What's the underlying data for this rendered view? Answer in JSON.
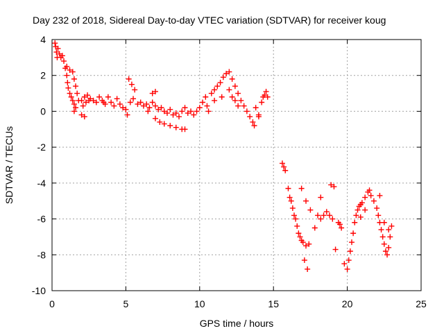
{
  "chart_data": {
    "type": "scatter",
    "title": "Day 232 of 2018, Sidereal Day-to-day VTEC variation (SDTVAR) for receiver koug",
    "xlabel": "GPS time / hours",
    "ylabel": "SDTVAR / TECUs",
    "xlim": [
      0,
      25
    ],
    "ylim": [
      -10,
      4
    ],
    "xticks": [
      0,
      5,
      10,
      15,
      20,
      25
    ],
    "yticks": [
      -10,
      -8,
      -6,
      -4,
      -2,
      0,
      2,
      4
    ],
    "grid": true,
    "marker": "+",
    "series": [
      {
        "name": "SDTVAR",
        "color": "#ff0000",
        "points": [
          [
            0.2,
            3.8
          ],
          [
            0.25,
            3.6
          ],
          [
            0.3,
            3.3
          ],
          [
            0.35,
            3.0
          ],
          [
            0.4,
            3.5
          ],
          [
            0.5,
            3.2
          ],
          [
            0.6,
            3.0
          ],
          [
            0.7,
            3.1
          ],
          [
            0.8,
            2.8
          ],
          [
            0.9,
            2.4
          ],
          [
            1.0,
            2.0
          ],
          [
            1.05,
            1.6
          ],
          [
            1.1,
            1.3
          ],
          [
            1.2,
            1.0
          ],
          [
            1.3,
            0.8
          ],
          [
            1.4,
            0.6
          ],
          [
            1.5,
            0.4
          ],
          [
            1.0,
            2.5
          ],
          [
            1.2,
            2.3
          ],
          [
            1.4,
            2.2
          ],
          [
            1.5,
            1.8
          ],
          [
            1.6,
            1.4
          ],
          [
            1.7,
            1.0
          ],
          [
            1.8,
            0.6
          ],
          [
            1.6,
            0.2
          ],
          [
            1.5,
            0.0
          ],
          [
            2.0,
            0.6
          ],
          [
            2.1,
            0.3
          ],
          [
            2.2,
            0.8
          ],
          [
            2.3,
            0.5
          ],
          [
            2.4,
            0.9
          ],
          [
            2.5,
            0.6
          ],
          [
            2.2,
            -0.3
          ],
          [
            2.0,
            -0.2
          ],
          [
            2.6,
            0.7
          ],
          [
            2.8,
            0.6
          ],
          [
            3.0,
            0.5
          ],
          [
            3.2,
            0.8
          ],
          [
            3.4,
            0.6
          ],
          [
            3.5,
            0.5
          ],
          [
            3.6,
            0.4
          ],
          [
            3.8,
            0.8
          ],
          [
            4.0,
            0.5
          ],
          [
            4.2,
            0.3
          ],
          [
            4.4,
            0.7
          ],
          [
            4.6,
            0.4
          ],
          [
            4.8,
            0.2
          ],
          [
            5.0,
            0.1
          ],
          [
            5.1,
            -0.2
          ],
          [
            5.3,
            0.5
          ],
          [
            5.5,
            0.7
          ],
          [
            5.6,
            1.2
          ],
          [
            5.4,
            1.5
          ],
          [
            5.2,
            1.8
          ],
          [
            5.8,
            0.4
          ],
          [
            6.0,
            0.5
          ],
          [
            6.2,
            0.3
          ],
          [
            6.4,
            0.4
          ],
          [
            6.6,
            0.2
          ],
          [
            6.8,
            0.5
          ],
          [
            7.0,
            0.3
          ],
          [
            7.2,
            0.1
          ],
          [
            7.4,
            0.2
          ],
          [
            7.6,
            0.0
          ],
          [
            7.8,
            -0.1
          ],
          [
            8.0,
            0.1
          ],
          [
            8.2,
            -0.2
          ],
          [
            8.4,
            -0.1
          ],
          [
            8.6,
            -0.3
          ],
          [
            8.8,
            0.0
          ],
          [
            9.0,
            0.2
          ],
          [
            9.2,
            -0.1
          ],
          [
            9.4,
            0.0
          ],
          [
            9.6,
            -0.2
          ],
          [
            9.8,
            0.0
          ],
          [
            10.0,
            0.2
          ],
          [
            10.2,
            0.5
          ],
          [
            10.4,
            0.8
          ],
          [
            10.5,
            0.3
          ],
          [
            10.6,
            0.0
          ],
          [
            7.0,
            -0.4
          ],
          [
            7.3,
            -0.6
          ],
          [
            7.6,
            -0.7
          ],
          [
            8.0,
            -0.8
          ],
          [
            8.4,
            -0.9
          ],
          [
            8.8,
            -1.0
          ],
          [
            9.0,
            -1.0
          ],
          [
            6.8,
            1.0
          ],
          [
            7.0,
            1.1
          ],
          [
            6.5,
            0.0
          ],
          [
            10.8,
            1.0
          ],
          [
            11.0,
            1.2
          ],
          [
            11.2,
            1.4
          ],
          [
            11.4,
            1.6
          ],
          [
            11.6,
            1.9
          ],
          [
            11.8,
            2.1
          ],
          [
            12.0,
            2.2
          ],
          [
            12.2,
            1.8
          ],
          [
            12.4,
            1.4
          ],
          [
            12.6,
            1.0
          ],
          [
            12.8,
            0.6
          ],
          [
            13.0,
            0.3
          ],
          [
            13.2,
            0.0
          ],
          [
            13.4,
            -0.3
          ],
          [
            13.6,
            -0.6
          ],
          [
            13.7,
            -0.8
          ],
          [
            12.0,
            1.2
          ],
          [
            12.2,
            0.8
          ],
          [
            12.4,
            0.6
          ],
          [
            12.6,
            0.3
          ],
          [
            11.5,
            0.8
          ],
          [
            11.0,
            0.6
          ],
          [
            13.8,
            0.2
          ],
          [
            14.0,
            -0.2
          ],
          [
            14.2,
            0.5
          ],
          [
            14.3,
            0.8
          ],
          [
            14.4,
            0.9
          ],
          [
            14.5,
            1.1
          ],
          [
            14.6,
            0.8
          ],
          [
            14.0,
            -0.3
          ],
          [
            15.6,
            -2.9
          ],
          [
            15.7,
            -3.1
          ],
          [
            15.8,
            -3.3
          ],
          [
            16.0,
            -4.3
          ],
          [
            16.1,
            -4.8
          ],
          [
            16.2,
            -5.0
          ],
          [
            16.3,
            -5.4
          ],
          [
            16.4,
            -5.8
          ],
          [
            16.5,
            -6.0
          ],
          [
            16.6,
            -6.4
          ],
          [
            16.7,
            -6.8
          ],
          [
            16.8,
            -7.0
          ],
          [
            16.9,
            -7.2
          ],
          [
            17.0,
            -7.3
          ],
          [
            17.2,
            -7.5
          ],
          [
            17.4,
            -7.4
          ],
          [
            16.9,
            -4.3
          ],
          [
            17.2,
            -5.0
          ],
          [
            17.1,
            -8.3
          ],
          [
            17.3,
            -8.8
          ],
          [
            17.5,
            -5.5
          ],
          [
            17.8,
            -6.5
          ],
          [
            18.0,
            -5.8
          ],
          [
            18.2,
            -6.0
          ],
          [
            18.4,
            -5.8
          ],
          [
            18.2,
            -4.8
          ],
          [
            18.6,
            -5.6
          ],
          [
            18.8,
            -5.8
          ],
          [
            18.9,
            -4.1
          ],
          [
            19.1,
            -4.2
          ],
          [
            19.0,
            -6.0
          ],
          [
            19.2,
            -7.7
          ],
          [
            19.4,
            -6.2
          ],
          [
            19.6,
            -6.5
          ],
          [
            19.8,
            -8.5
          ],
          [
            20.0,
            -8.8
          ],
          [
            20.1,
            -8.3
          ],
          [
            20.2,
            -7.8
          ],
          [
            20.3,
            -7.3
          ],
          [
            20.4,
            -6.8
          ],
          [
            20.5,
            -6.2
          ],
          [
            20.6,
            -5.8
          ],
          [
            20.7,
            -5.5
          ],
          [
            20.8,
            -5.3
          ],
          [
            20.9,
            -5.2
          ],
          [
            21.0,
            -5.1
          ],
          [
            21.2,
            -4.8
          ],
          [
            21.4,
            -4.5
          ],
          [
            21.5,
            -4.4
          ],
          [
            21.6,
            -4.7
          ],
          [
            21.8,
            -5.0
          ],
          [
            22.0,
            -5.4
          ],
          [
            22.1,
            -5.8
          ],
          [
            22.2,
            -6.2
          ],
          [
            22.3,
            -6.6
          ],
          [
            22.4,
            -7.0
          ],
          [
            22.5,
            -7.4
          ],
          [
            22.6,
            -7.8
          ],
          [
            22.7,
            -8.0
          ],
          [
            22.8,
            -7.6
          ],
          [
            22.9,
            -7.0
          ],
          [
            23.0,
            -6.4
          ],
          [
            22.2,
            -4.7
          ],
          [
            21.2,
            -5.5
          ],
          [
            22.5,
            -6.2
          ],
          [
            22.8,
            -6.6
          ],
          [
            20.9,
            -5.9
          ],
          [
            19.5,
            -6.3
          ]
        ]
      }
    ]
  }
}
